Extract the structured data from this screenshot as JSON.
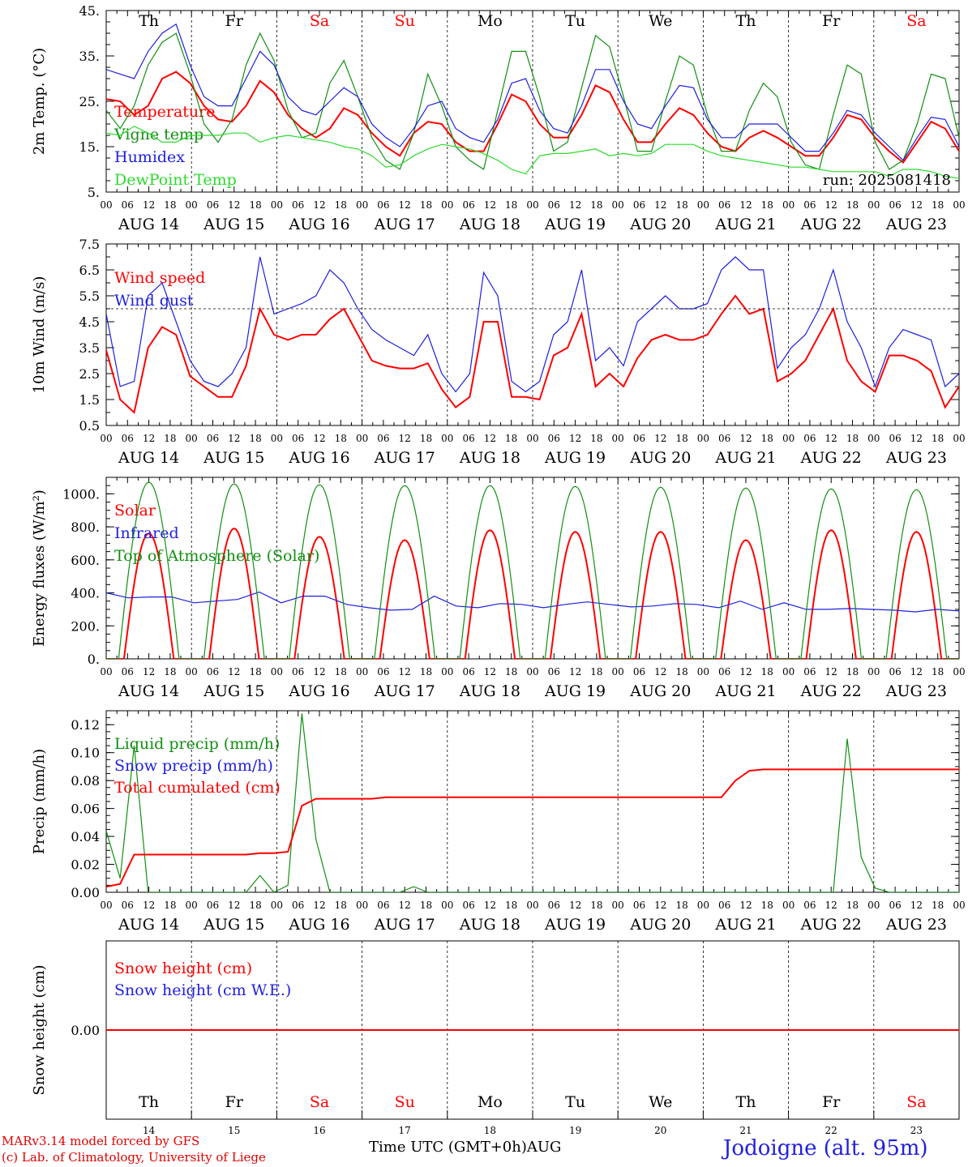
{
  "colors": {
    "red": "#ff0000",
    "blue": "#1f1fdf",
    "green": "#118f11",
    "lime": "#2bdc2b",
    "weekend": "#ff0000",
    "frame": "#000000"
  },
  "days": [
    "Th",
    "Fr",
    "Sa",
    "Su",
    "Mo",
    "Tu",
    "We",
    "Th",
    "Fr",
    "Sa"
  ],
  "weekend_days": [
    2,
    3,
    9
  ],
  "dates": [
    "AUG 14",
    "AUG 15",
    "AUG 16",
    "AUG 17",
    "AUG 18",
    "AUG 19",
    "AUG 20",
    "AUG 21",
    "AUG 22",
    "AUG 23"
  ],
  "hour_ticks": [
    "00",
    "06",
    "12",
    "18"
  ],
  "day_numbers": [
    "14",
    "15",
    "16",
    "17",
    "18",
    "19",
    "20",
    "21",
    "22",
    "23"
  ],
  "footer": {
    "model": "MARv3.14 model forced by GFS",
    "lab": "(c) Lab. of Climatology, University of Liege",
    "xtitle": "Time UTC (GMT+0h)AUG",
    "station": "Jodoigne (alt. 95m)"
  },
  "chart_data": [
    {
      "type": "line",
      "ylabel": "2m Temp. (°C)",
      "ylim": [
        5,
        45
      ],
      "yticks": [
        "5.",
        "15.",
        "25.",
        "35.",
        "45."
      ],
      "run_label": "run: 2025081418",
      "x_hours_step": 6,
      "series": [
        {
          "name": "Temperature",
          "color": "red",
          "values": [
            25.5,
            25,
            22,
            24,
            30,
            31.5,
            29,
            24,
            21,
            20.5,
            24,
            29.5,
            27,
            22,
            19,
            17,
            19,
            23.5,
            22,
            18,
            15,
            13,
            18,
            20.5,
            20,
            16,
            14,
            14,
            20,
            26.5,
            25,
            20,
            17,
            17,
            22,
            28.5,
            27,
            21,
            16,
            16,
            20,
            23.5,
            22,
            18,
            15,
            14,
            17,
            18.5,
            17,
            15,
            13,
            13,
            17,
            22,
            21,
            17,
            14,
            11.5,
            16,
            20.5,
            19,
            14
          ]
        },
        {
          "name": "Vigne temp",
          "color": "green",
          "values": [
            23,
            19,
            24,
            33,
            38,
            40,
            31,
            20,
            16,
            21,
            33,
            40,
            34,
            23,
            17,
            18,
            29,
            34,
            26,
            17,
            12,
            10,
            18,
            31,
            24,
            15,
            12,
            10,
            23,
            36,
            36,
            26,
            14,
            16,
            28,
            39.5,
            37,
            26,
            14,
            14,
            25,
            35,
            33,
            22,
            14,
            14,
            23,
            29,
            26,
            16,
            11,
            10,
            22,
            33,
            31,
            16,
            10,
            12,
            20,
            31,
            30,
            17
          ]
        },
        {
          "name": "Humidex",
          "color": "blue",
          "values": [
            32,
            31,
            30,
            36,
            40,
            42,
            33,
            26,
            24,
            24,
            30,
            36,
            33,
            26,
            23,
            22,
            25,
            28,
            26,
            20,
            17,
            15,
            19,
            24,
            25,
            19,
            17,
            16,
            21,
            29,
            30,
            23,
            19,
            18,
            24,
            32,
            32,
            25,
            20,
            19,
            24,
            28.5,
            28,
            21,
            17,
            17,
            20,
            20,
            20,
            17,
            14,
            14,
            18,
            23,
            22,
            18,
            15,
            12,
            17,
            21.5,
            21,
            15
          ]
        },
        {
          "name": "DewPoint Temp",
          "color": "lime",
          "values": [
            18,
            17.5,
            19.5,
            18,
            16,
            16,
            17.5,
            17.5,
            17.5,
            18,
            18,
            16,
            17,
            17.5,
            17,
            16.5,
            16,
            15,
            14.5,
            13,
            10.5,
            11,
            13,
            14.5,
            15.5,
            15,
            14.5,
            13.5,
            12,
            10,
            9,
            13,
            13.5,
            13.5,
            14,
            14.5,
            13,
            13.5,
            13,
            13.5,
            15.5,
            15.5,
            15.5,
            14,
            13,
            12.5,
            12,
            11.5,
            11,
            10.5,
            10.5,
            10,
            9.5,
            9.5,
            9.5,
            9.5,
            8.5,
            10,
            10,
            9.5,
            8.5,
            8
          ]
        }
      ]
    },
    {
      "type": "line",
      "ylabel": "10m Wind (m/s)",
      "ylim": [
        0.5,
        7.5
      ],
      "yticks": [
        "0.5",
        "1.5",
        "2.5",
        "3.5",
        "4.5",
        "5.5",
        "6.5",
        "7.5"
      ],
      "threshold": 5,
      "x_hours_step": 6,
      "series": [
        {
          "name": "Wind speed",
          "color": "red",
          "values": [
            3.4,
            1.5,
            1.0,
            3.5,
            4.3,
            4.0,
            2.4,
            2.0,
            1.6,
            1.6,
            2.8,
            5.0,
            4.0,
            3.8,
            4.0,
            4.0,
            4.6,
            5.0,
            4.0,
            3.0,
            2.8,
            2.7,
            2.7,
            2.9,
            1.9,
            1.2,
            1.6,
            4.5,
            4.5,
            1.6,
            1.6,
            1.5,
            3.2,
            3.5,
            4.8,
            2.0,
            2.5,
            2.0,
            3.1,
            3.8,
            4.0,
            3.8,
            3.8,
            4.0,
            4.8,
            5.5,
            4.8,
            5.0,
            2.2,
            2.5,
            3.0,
            4.0,
            5.0,
            3.0,
            2.2,
            1.8,
            3.2,
            3.2,
            3.0,
            2.6,
            1.2,
            2.0
          ]
        },
        {
          "name": "Wind gust",
          "color": "blue",
          "values": [
            4.8,
            2.0,
            2.2,
            5.5,
            6.0,
            4.5,
            3.0,
            2.2,
            2.0,
            2.5,
            3.5,
            7.0,
            4.8,
            5.0,
            5.2,
            5.5,
            6.5,
            6.0,
            5.0,
            4.2,
            3.8,
            3.5,
            3.2,
            4.0,
            2.5,
            1.8,
            2.5,
            6.4,
            5.5,
            2.2,
            1.8,
            2.2,
            4.0,
            4.5,
            6.5,
            3.0,
            3.5,
            2.8,
            4.5,
            5.0,
            5.5,
            5.0,
            5.0,
            5.2,
            6.5,
            7.0,
            6.5,
            6.5,
            2.7,
            3.5,
            4.0,
            5.0,
            6.5,
            4.5,
            3.5,
            2.0,
            3.5,
            4.2,
            4.0,
            3.8,
            2.0,
            2.5
          ]
        }
      ]
    },
    {
      "type": "line",
      "ylabel": "Energy fluxes (W/m²)",
      "ylim": [
        0,
        1100
      ],
      "yticks": [
        "0.",
        "200.",
        "400.",
        "600.",
        "800.",
        "1000."
      ],
      "x_hours_step": 6,
      "series": [
        {
          "name": "Solar",
          "color": "red",
          "peaks": [
            760,
            790,
            740,
            720,
            780,
            770,
            770,
            720,
            780,
            770
          ]
        },
        {
          "name": "Infrared",
          "color": "blue",
          "values": [
            400,
            370,
            375,
            375,
            340,
            350,
            360,
            405,
            340,
            380,
            380,
            330,
            310,
            295,
            300,
            380,
            320,
            310,
            335,
            330,
            310,
            330,
            345,
            330,
            315,
            320,
            335,
            330,
            310,
            350,
            300,
            340,
            300,
            300,
            305,
            300,
            295,
            285,
            300,
            290
          ]
        },
        {
          "name": "Top of Atmosphere (Solar)",
          "color": "green",
          "peaks": [
            1070,
            1060,
            1055,
            1050,
            1050,
            1045,
            1040,
            1035,
            1030,
            1025
          ]
        }
      ]
    },
    {
      "type": "line",
      "ylabel": "Precip (mm/h)",
      "ylim": [
        0,
        0.13
      ],
      "yticks": [
        "0.00",
        "0.02",
        "0.04",
        "0.06",
        "0.08",
        "0.10",
        "0.12"
      ],
      "x_hours_step": 6,
      "series": [
        {
          "name": "Liquid precip (mm/h)",
          "color": "green",
          "values": [
            0.044,
            0.01,
            0.105,
            0,
            0,
            0,
            0,
            0,
            0,
            0,
            0,
            0.012,
            0,
            0.005,
            0.128,
            0.038,
            0,
            0,
            0,
            0,
            0,
            0,
            0.004,
            0,
            0,
            0,
            0,
            0,
            0,
            0,
            0,
            0,
            0,
            0,
            0,
            0,
            0,
            0,
            0,
            0,
            0,
            0,
            0,
            0,
            0,
            0,
            0,
            0,
            0,
            0,
            0,
            0,
            0,
            0.11,
            0.025,
            0.003,
            0,
            0,
            0,
            0,
            0,
            0
          ]
        },
        {
          "name": "Snow precip (mm/h)",
          "color": "blue",
          "values": []
        },
        {
          "name": "Total cumulated (cm)",
          "color": "red",
          "values": [
            0.004,
            0.006,
            0.027,
            0.027,
            0.027,
            0.027,
            0.027,
            0.027,
            0.027,
            0.027,
            0.027,
            0.028,
            0.028,
            0.029,
            0.062,
            0.067,
            0.067,
            0.067,
            0.067,
            0.067,
            0.068,
            0.068,
            0.068,
            0.068,
            0.068,
            0.068,
            0.068,
            0.068,
            0.068,
            0.068,
            0.068,
            0.068,
            0.068,
            0.068,
            0.068,
            0.068,
            0.068,
            0.068,
            0.068,
            0.068,
            0.068,
            0.068,
            0.068,
            0.068,
            0.068,
            0.08,
            0.087,
            0.088,
            0.088,
            0.088,
            0.088,
            0.088,
            0.088,
            0.088,
            0.088,
            0.088,
            0.088,
            0.088,
            0.088,
            0.088,
            0.088,
            0.088
          ]
        }
      ]
    },
    {
      "type": "line",
      "ylabel": "Snow height (cm)",
      "ylim": [
        -1,
        1
      ],
      "yticks": [
        "0.00"
      ],
      "x_hours_step": 6,
      "series": [
        {
          "name": "Snow height (cm)",
          "color": "red",
          "values": [
            0,
            0
          ]
        },
        {
          "name": "Snow height (cm W.E.)",
          "color": "blue",
          "values": []
        }
      ]
    }
  ]
}
